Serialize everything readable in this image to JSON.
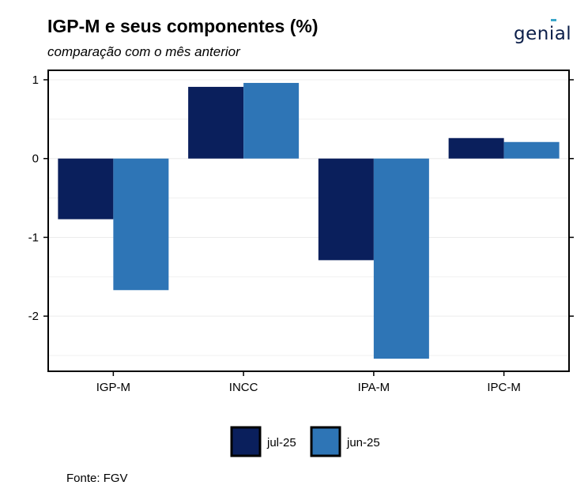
{
  "header": {
    "title": "IGP-M e seus componentes (%)",
    "subtitle": "comparação com o mês anterior",
    "logo_text": "genial"
  },
  "footer": {
    "source": "Fonte: FGV"
  },
  "colors": {
    "jul-25": "#0a1f5c",
    "jun-25": "#2e75b6"
  },
  "chart_data": {
    "type": "bar",
    "categories": [
      "IGP-M",
      "INCC",
      "IPA-M",
      "IPC-M"
    ],
    "series": [
      {
        "name": "jul-25",
        "values": [
          -0.77,
          0.91,
          -1.29,
          0.26
        ]
      },
      {
        "name": "jun-25",
        "values": [
          -1.67,
          0.96,
          -2.54,
          0.21
        ]
      }
    ],
    "yticks": [
      1,
      0,
      -1,
      -2
    ],
    "ylim": [
      -2.7,
      1.12
    ],
    "legend": "bottom",
    "grid": true
  }
}
